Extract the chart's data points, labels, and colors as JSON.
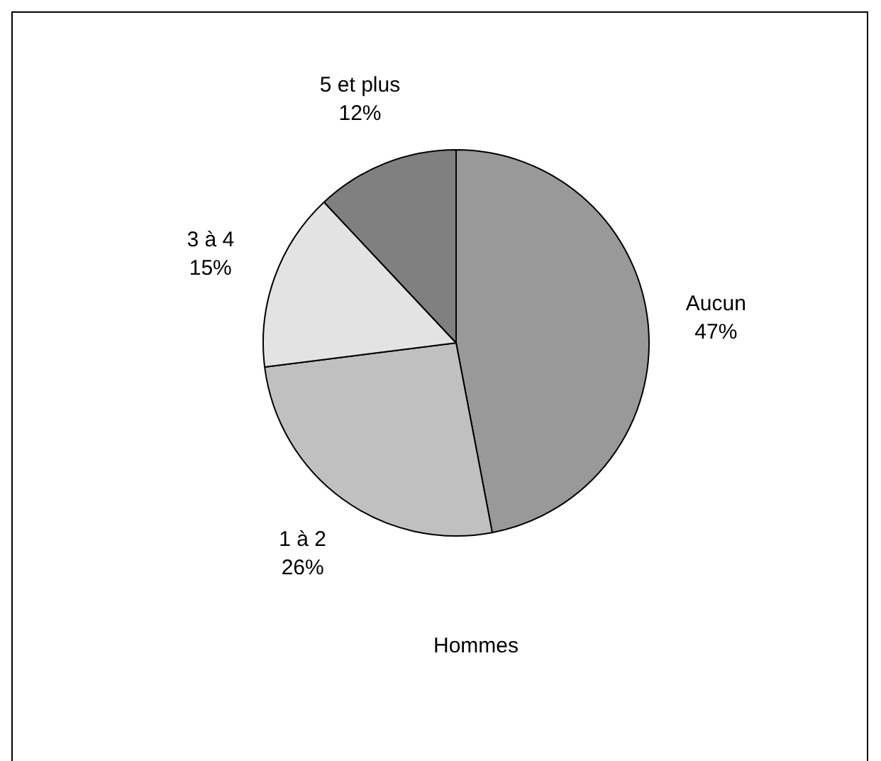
{
  "chart_data": {
    "type": "pie",
    "xlabel": "Hommes",
    "categories": [
      "Aucun",
      "1 à 2",
      "3 à 4",
      "5 et plus"
    ],
    "values": [
      47,
      26,
      15,
      12
    ],
    "colors": [
      "#999999",
      "#c0c0c0",
      "#e3e3e3",
      "#808080"
    ],
    "value_labels": [
      "47%",
      "26%",
      "15%",
      "12%"
    ],
    "legend": false
  }
}
